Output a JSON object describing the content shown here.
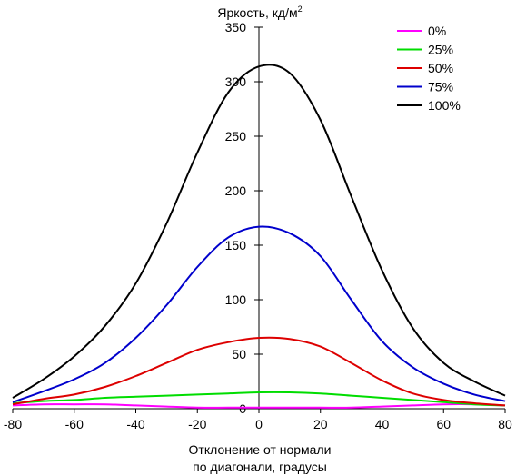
{
  "chart_data": {
    "type": "line",
    "title": "Яркость, кд/м",
    "title_superscript": "2",
    "xlabel_line1": "Отклонение от нормали",
    "xlabel_line2": "по диагонали, градусы",
    "xlim": [
      -80,
      80
    ],
    "ylim": [
      0,
      350
    ],
    "xticks": [
      -80,
      -60,
      -40,
      -20,
      0,
      20,
      40,
      60,
      80
    ],
    "yticks": [
      0,
      50,
      100,
      150,
      200,
      250,
      300,
      350
    ],
    "grid": false,
    "legend_position": "top-right",
    "series": [
      {
        "name": "0%",
        "color": "#ff00ff",
        "x": [
          -80,
          -70,
          -60,
          -50,
          -40,
          -30,
          -20,
          -10,
          0,
          10,
          20,
          30,
          40,
          50,
          60,
          70,
          80
        ],
        "y": [
          3,
          4,
          4,
          4,
          3,
          2,
          1,
          1,
          1,
          1,
          1,
          1,
          2,
          3,
          4,
          4,
          3
        ]
      },
      {
        "name": "25%",
        "color": "#00dd00",
        "x": [
          -80,
          -70,
          -60,
          -50,
          -40,
          -30,
          -20,
          -10,
          0,
          10,
          20,
          30,
          40,
          50,
          60,
          70,
          80
        ],
        "y": [
          5,
          7,
          8,
          10,
          11,
          12,
          13,
          14,
          15,
          15,
          14,
          12,
          10,
          8,
          6,
          4,
          3
        ]
      },
      {
        "name": "50%",
        "color": "#dd0000",
        "x": [
          -80,
          -70,
          -60,
          -50,
          -40,
          -30,
          -20,
          -10,
          0,
          10,
          20,
          30,
          40,
          50,
          60,
          70,
          80
        ],
        "y": [
          4,
          9,
          13,
          20,
          30,
          42,
          54,
          61,
          65,
          64,
          57,
          42,
          26,
          14,
          8,
          5,
          3
        ]
      },
      {
        "name": "75%",
        "color": "#0000cc",
        "x": [
          -80,
          -70,
          -60,
          -50,
          -40,
          -30,
          -20,
          -10,
          0,
          10,
          20,
          30,
          40,
          50,
          60,
          70,
          80
        ],
        "y": [
          6,
          16,
          27,
          42,
          65,
          95,
          130,
          157,
          167,
          161,
          140,
          100,
          62,
          38,
          23,
          13,
          7
        ]
      },
      {
        "name": "100%",
        "color": "#000000",
        "x": [
          -80,
          -70,
          -60,
          -50,
          -40,
          -30,
          -20,
          -10,
          0,
          10,
          20,
          30,
          40,
          50,
          60,
          70,
          80
        ],
        "y": [
          10,
          27,
          48,
          76,
          115,
          170,
          235,
          290,
          314,
          308,
          265,
          195,
          127,
          74,
          42,
          25,
          12
        ]
      }
    ]
  }
}
